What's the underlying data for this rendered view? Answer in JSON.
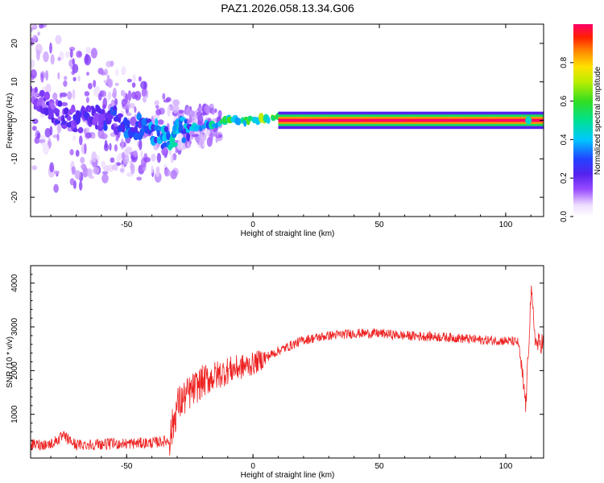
{
  "title": "PAZ1.2026.058.13.34.G06",
  "chart_data": [
    {
      "type": "heatmap",
      "name": "spectrogram",
      "xlabel": "Height of straight line (km)",
      "ylabel": "Frequency (Hz)",
      "xlim": [
        -88,
        115
      ],
      "ylim": [
        -25,
        25
      ],
      "xticks": [
        -50,
        0,
        50,
        100
      ],
      "yticks": [
        -20,
        -10,
        0,
        10,
        20
      ],
      "colorbar": {
        "label": "Normalized spectral amplitude",
        "range": [
          0.0,
          1.0
        ],
        "ticks": [
          0.0,
          0.2,
          0.4,
          0.6,
          0.8
        ],
        "tick_labels": [
          "0.0",
          "0.2",
          "0.4",
          "0.6",
          "0.8"
        ]
      },
      "ridge": {
        "x": [
          -88,
          -80,
          -70,
          -60,
          -50,
          -45,
          -40,
          -35,
          -32,
          -30,
          -25,
          -20,
          -15,
          -10,
          -5,
          0,
          5,
          10,
          15,
          30,
          50,
          80,
          105,
          110,
          115
        ],
        "freq": [
          7,
          3,
          0,
          1,
          -1,
          -2,
          -3,
          -4,
          -5,
          -3,
          -2,
          -1.5,
          -1,
          0,
          0,
          0,
          0.5,
          0.5,
          0,
          0,
          0,
          0,
          0,
          -0.5,
          0
        ],
        "amplitude": [
          0.15,
          0.2,
          0.22,
          0.25,
          0.3,
          0.32,
          0.35,
          0.38,
          0.4,
          0.4,
          0.35,
          0.4,
          0.45,
          0.5,
          0.55,
          0.6,
          0.65,
          0.7,
          1.0,
          1.0,
          1.0,
          1.0,
          1.0,
          0.45,
          0.95
        ]
      }
    },
    {
      "type": "line",
      "name": "snr",
      "xlabel": "Height of straight line (km)",
      "ylabel": "SNR (10 * v/v)",
      "xlim": [
        -88,
        115
      ],
      "ylim": [
        0,
        4400
      ],
      "xticks": [
        -50,
        0,
        50,
        100
      ],
      "yticks": [
        1000,
        2000,
        3000,
        4000
      ],
      "color": "#ee2222",
      "series": [
        {
          "name": "SNR",
          "x": [
            -88,
            -80,
            -75,
            -70,
            -60,
            -50,
            -40,
            -33,
            -30,
            -25,
            -20,
            -10,
            0,
            10,
            20,
            25,
            30,
            40,
            50,
            60,
            70,
            80,
            90,
            100,
            105,
            108,
            110,
            112,
            115
          ],
          "y": [
            300,
            320,
            500,
            300,
            320,
            330,
            350,
            400,
            1200,
            1500,
            1750,
            2000,
            2150,
            2450,
            2700,
            2750,
            2800,
            2850,
            2850,
            2800,
            2780,
            2750,
            2700,
            2680,
            2650,
            1200,
            3800,
            2600,
            2650
          ]
        }
      ]
    }
  ]
}
